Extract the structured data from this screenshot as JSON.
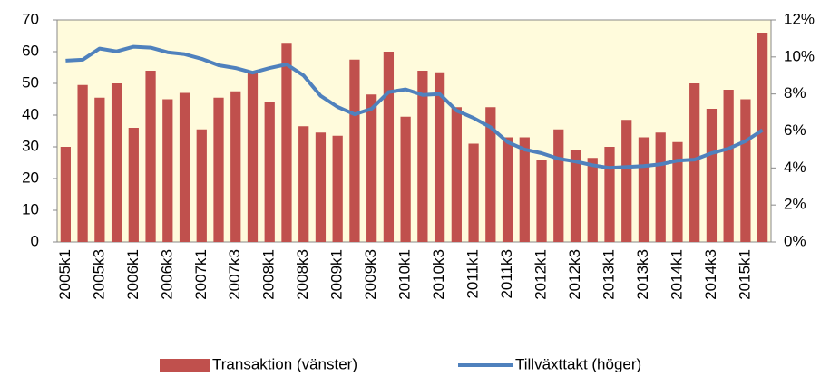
{
  "chart_data": {
    "type": "bar-line",
    "categories": [
      "2005k1",
      null,
      "2005k3",
      null,
      "2006k1",
      null,
      "2006k3",
      null,
      "2007k1",
      null,
      "2007k3",
      null,
      "2008k1",
      null,
      "2008k3",
      null,
      "2009k1",
      null,
      "2009k3",
      null,
      "2010k1",
      null,
      "2010k3",
      null,
      "2011k1",
      null,
      "2011k3",
      null,
      "2012k1",
      null,
      "2012k3",
      null,
      "2013k1",
      null,
      "2013k3",
      null,
      "2014k1",
      null,
      "2014k3",
      null,
      "2015k1",
      null
    ],
    "series": [
      {
        "name": "Transaktion (vänster)",
        "type": "bar",
        "color": "#c0504d",
        "values": [
          30,
          49.5,
          45.5,
          50,
          36,
          54,
          45,
          47,
          35.5,
          45.5,
          47.5,
          53.5,
          44,
          62.5,
          36.5,
          34.5,
          33.5,
          57.5,
          46.5,
          60,
          39.5,
          54,
          53.5,
          42.5,
          31,
          42.5,
          33,
          33,
          26,
          35.5,
          29,
          26.5,
          30,
          38.5,
          33,
          34.5,
          31.5,
          50,
          42,
          48,
          45,
          66
        ]
      },
      {
        "name": "Tillväxttakt (höger)",
        "type": "line",
        "axis": "y2",
        "color": "#4f81bd",
        "values": [
          9.8,
          9.85,
          10.45,
          10.3,
          10.55,
          10.5,
          10.25,
          10.15,
          9.9,
          9.55,
          9.4,
          9.15,
          9.4,
          9.6,
          9.0,
          7.9,
          7.3,
          6.9,
          7.2,
          8.1,
          8.25,
          7.95,
          8.0,
          7.1,
          6.7,
          6.2,
          5.4,
          5.0,
          4.8,
          4.5,
          4.35,
          4.15,
          4.0,
          4.05,
          4.1,
          4.2,
          4.4,
          4.45,
          4.8,
          5.05,
          5.45,
          6.05
        ]
      }
    ],
    "ylim": [
      0,
      70
    ],
    "yticks": [
      0,
      10,
      20,
      30,
      40,
      50,
      60,
      70
    ],
    "y2lim": [
      0,
      12
    ],
    "y2ticks": [
      {
        "value": 0,
        "label": "0%"
      },
      {
        "value": 2,
        "label": "2%"
      },
      {
        "value": 4,
        "label": "4%"
      },
      {
        "value": 6,
        "label": "6%"
      },
      {
        "value": 8,
        "label": "8%"
      },
      {
        "value": 10,
        "label": "10%"
      },
      {
        "value": 12,
        "label": "12%"
      }
    ],
    "legend": "bottom",
    "background": "#fffbdc"
  }
}
